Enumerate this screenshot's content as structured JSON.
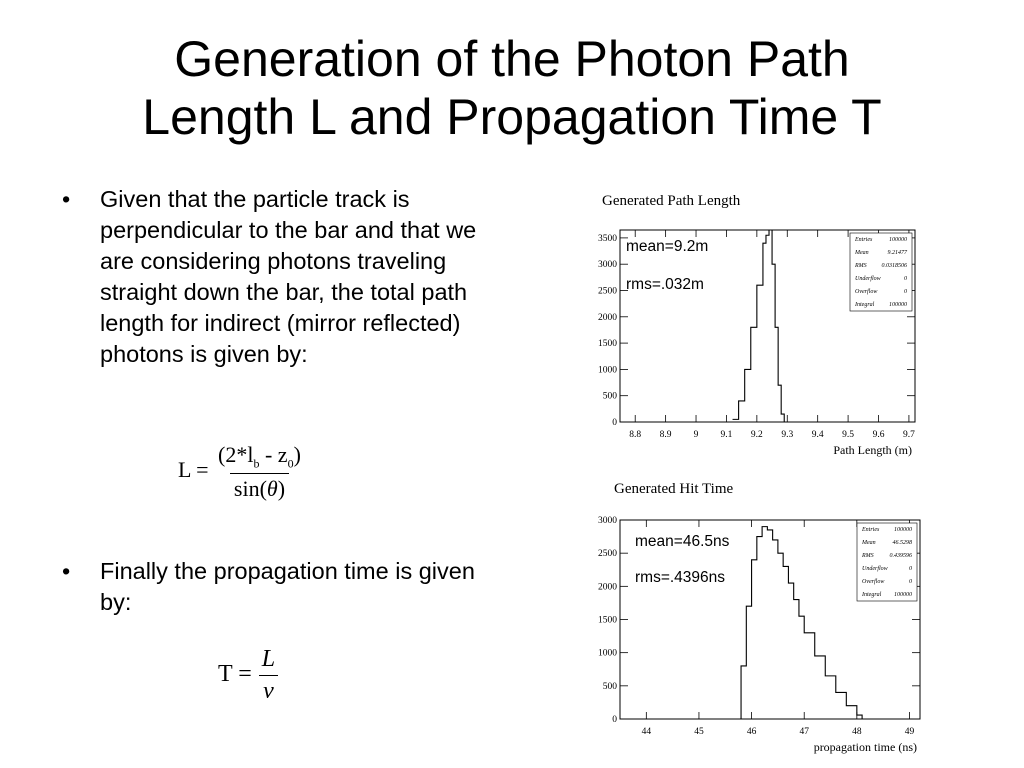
{
  "slide": {
    "title_line1": "Generation of the Photon Path",
    "title_line2": "Length L and Propagation Time T",
    "bullet1": "Given that the particle track is perpendicular to the bar and that we are considering photons traveling straight down the bar, the total path length for indirect (mirror reflected) photons is given by:",
    "bullet2": "Finally the propagation time is given by:",
    "bullet_symbol": "•",
    "eq1": {
      "lhs": "L =",
      "num_open": "(2*l",
      "num_sub_b": "b",
      "num_mid": " - z",
      "num_sub_0": "0",
      "num_close": ")",
      "den_pre": "sin(",
      "den_theta": "θ",
      "den_post": ")"
    },
    "eq2": {
      "lhs": "T =",
      "num": "L",
      "den": "v"
    }
  },
  "chart_data": [
    {
      "type": "histogram",
      "title": "Generated Path Length",
      "xlabel": "Path Length (m)",
      "ylabel": "",
      "xlim": [
        8.75,
        9.72
      ],
      "ylim": [
        0,
        3650
      ],
      "xticks": [
        "8.8",
        "8.9",
        "9",
        "9.1",
        "9.2",
        "9.3",
        "9.4",
        "9.5",
        "9.6",
        "9.7"
      ],
      "xtick_values": [
        8.8,
        8.9,
        9.0,
        9.1,
        9.2,
        9.3,
        9.4,
        9.5,
        9.6,
        9.7
      ],
      "yticks": [
        "0",
        "500",
        "1000",
        "1500",
        "2000",
        "2500",
        "3000",
        "3500"
      ],
      "ytick_values": [
        0,
        500,
        1000,
        1500,
        2000,
        2500,
        3000,
        3500
      ],
      "annotations": [
        "mean=9.2m",
        "rms=.032m"
      ],
      "stats": [
        [
          "Entries",
          "100000"
        ],
        [
          "Mean",
          "9.21477"
        ],
        [
          "RMS",
          "0.0318506"
        ],
        [
          "Underflow",
          "0"
        ],
        [
          "Overflow",
          "0"
        ],
        [
          "Integral",
          "100000"
        ]
      ],
      "x": [
        9.12,
        9.14,
        9.16,
        9.18,
        9.2,
        9.22,
        9.23,
        9.24,
        9.25,
        9.26,
        9.27,
        9.28,
        9.29
      ],
      "values": [
        50,
        400,
        1000,
        1800,
        2600,
        3400,
        3550,
        3650,
        3000,
        1800,
        700,
        150,
        0
      ]
    },
    {
      "type": "histogram",
      "title": "Generated Hit Time",
      "xlabel": "propagation time (ns)",
      "ylabel": "",
      "xlim": [
        43.5,
        49.2
      ],
      "ylim": [
        0,
        3000
      ],
      "xticks": [
        "44",
        "45",
        "46",
        "47",
        "48",
        "49"
      ],
      "xtick_values": [
        44,
        45,
        46,
        47,
        48,
        49
      ],
      "yticks": [
        "0",
        "500",
        "1000",
        "1500",
        "2000",
        "2500",
        "3000"
      ],
      "ytick_values": [
        0,
        500,
        1000,
        1500,
        2000,
        2500,
        3000
      ],
      "annotations": [
        "mean=46.5ns",
        "rms=.4396ns"
      ],
      "stats": [
        [
          "Entries",
          "100000"
        ],
        [
          "Mean",
          "46.5298"
        ],
        [
          "RMS",
          "0.439596"
        ],
        [
          "Underflow",
          "0"
        ],
        [
          "Overflow",
          "0"
        ],
        [
          "Integral",
          "100000"
        ]
      ],
      "x": [
        45.7,
        45.8,
        45.9,
        46.0,
        46.1,
        46.2,
        46.3,
        46.4,
        46.5,
        46.6,
        46.7,
        46.8,
        46.9,
        47.0,
        47.2,
        47.4,
        47.6,
        47.8,
        48.0,
        48.1
      ],
      "values": [
        0,
        800,
        1700,
        2400,
        2750,
        2900,
        2850,
        2700,
        2500,
        2300,
        2050,
        1800,
        1550,
        1300,
        950,
        650,
        400,
        200,
        60,
        0
      ]
    }
  ]
}
